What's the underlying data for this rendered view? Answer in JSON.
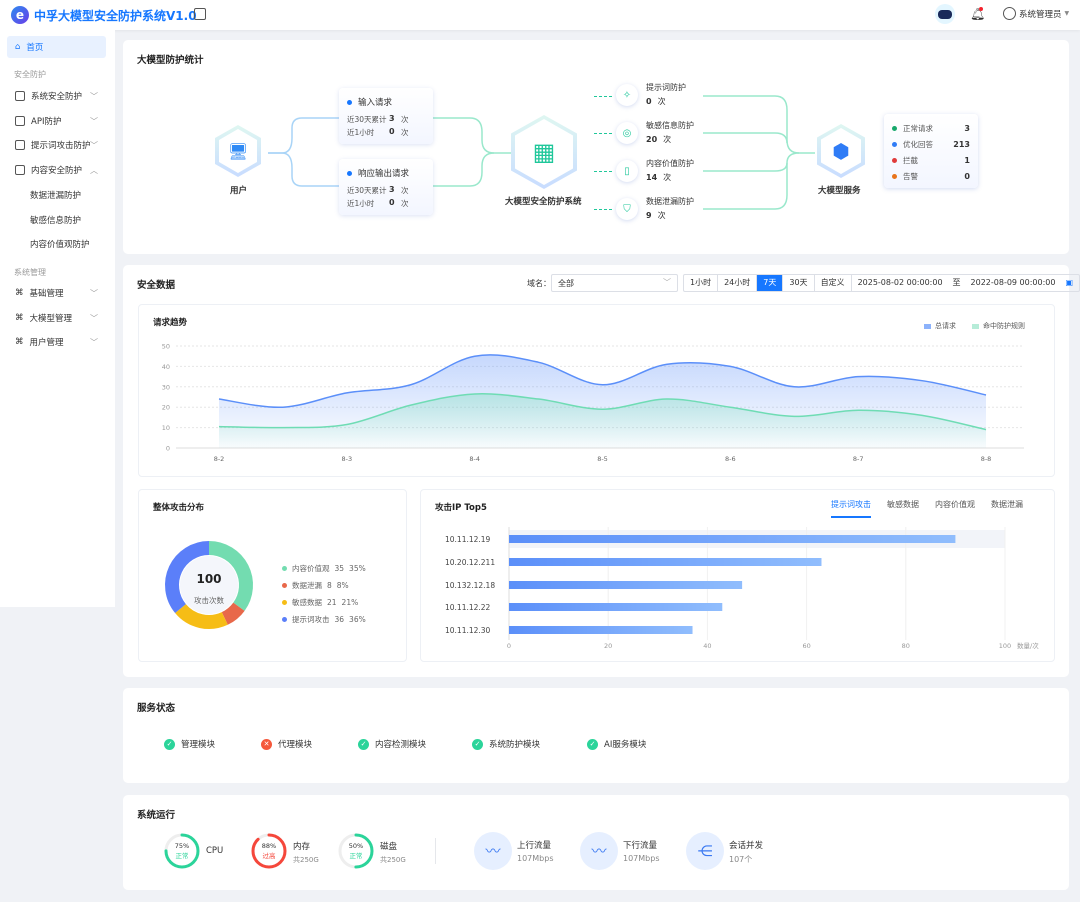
{
  "header": {
    "title": "中孚大模型安全防护系统V1.0",
    "logo_letter": "e",
    "user": "系统管理员",
    "icons": [
      "collapse-icon",
      "robot-icon",
      "bell-icon",
      "user-avatar-icon"
    ]
  },
  "sidebar": {
    "home": "首页",
    "group1": "安全防护",
    "items1": [
      {
        "label": "系统安全防护"
      },
      {
        "label": "API防护"
      },
      {
        "label": "提示词攻击防护"
      },
      {
        "label": "内容安全防护"
      }
    ],
    "subitems": [
      {
        "label": "数据泄漏防护"
      },
      {
        "label": "敏感信息防护"
      },
      {
        "label": "内容价值观防护"
      }
    ],
    "group2": "系统管理",
    "items2": [
      {
        "label": "基础管理"
      },
      {
        "label": "大模型管理"
      },
      {
        "label": "用户管理"
      }
    ]
  },
  "stats": {
    "title": "大模型防护统计",
    "user": "用户",
    "system": "大模型安全防护系统",
    "service": "大模型服务",
    "unit": "次",
    "input": {
      "title": "输入请求",
      "r1": "近30天累计",
      "v1": "3",
      "r2": "近1小时",
      "v2": "0"
    },
    "output": {
      "title": "响应输出请求",
      "r1": "近30天累计",
      "v1": "3",
      "r2": "近1小时",
      "v2": "0"
    },
    "protections": [
      {
        "label": "提示词防护",
        "count": "0",
        "icon": "magic-wand-icon"
      },
      {
        "label": "敏感信息防护",
        "count": "20",
        "icon": "eye-off-icon"
      },
      {
        "label": "内容价值防护",
        "count": "14",
        "icon": "book-icon"
      },
      {
        "label": "数据泄漏防护",
        "count": "9",
        "icon": "shield-icon"
      }
    ],
    "results": [
      {
        "label": "正常请求",
        "value": "3",
        "color": "#17a86b"
      },
      {
        "label": "优化回答",
        "value": "213",
        "color": "#2f7cf6"
      },
      {
        "label": "拦截",
        "value": "1",
        "color": "#e03b3b"
      },
      {
        "label": "告警",
        "value": "0",
        "color": "#e8741c"
      }
    ]
  },
  "security": {
    "title": "安全数据",
    "domain_label": "域名：",
    "domain_value": "全部",
    "ranges": [
      "1小时",
      "24小时",
      "7天",
      "30天",
      "自定义"
    ],
    "active_range": "7天",
    "start": "2025-08-02 00:00:00",
    "to": "至",
    "end": "2022-08-09 00:00:00"
  },
  "chart_data": [
    {
      "type": "area",
      "title": "请求趋势",
      "categories": [
        "8-2",
        "",
        "8-3",
        "",
        "8-4",
        "",
        "8-5",
        "",
        "8-6",
        "",
        "8-7",
        "",
        "8-8"
      ],
      "ylim": [
        0,
        50
      ],
      "yticks": [
        "0",
        "10",
        "20",
        "30",
        "40",
        "50"
      ],
      "grid": true,
      "legend_position": "top-right",
      "series": [
        {
          "name": "总请求",
          "color": "#5b8ff9",
          "values": [
            24,
            20,
            27,
            31,
            45,
            42,
            31,
            41,
            40,
            30,
            35,
            33,
            26
          ]
        },
        {
          "name": "命中防护规则",
          "color": "#6fdcb4",
          "values": [
            10.5,
            10,
            11.5,
            21,
            26.5,
            24,
            19,
            24,
            20,
            15.5,
            18.5,
            16,
            9
          ]
        }
      ]
    },
    {
      "type": "pie",
      "title": "整体攻击分布",
      "center_value": "100",
      "center_label": "攻击次数",
      "slices": [
        {
          "label": "内容价值观",
          "value": 35,
          "percent": "35%",
          "color": "#73dcb0"
        },
        {
          "label": "数据泄漏",
          "value": 8,
          "percent": "8%",
          "color": "#e8684a"
        },
        {
          "label": "敏感数据",
          "value": 21,
          "percent": "21%",
          "color": "#f6bd16"
        },
        {
          "label": "提示词攻击",
          "value": 36,
          "percent": "36%",
          "color": "#5b7ff9"
        }
      ]
    },
    {
      "type": "bar",
      "title": "攻击IP Top5",
      "tabs": [
        "提示词攻击",
        "敏感数据",
        "内容价值观",
        "数据泄漏"
      ],
      "active_tab": "提示词攻击",
      "categories": [
        "10.11.12.19",
        "10.20.12.211",
        "10.132.12.18",
        "10.11.12.22",
        "10.11.12.30"
      ],
      "values": [
        90,
        63,
        47,
        43,
        37
      ],
      "xlim": [
        0,
        100
      ],
      "xticks": [
        "0",
        "20",
        "40",
        "60",
        "80",
        "100"
      ],
      "xlabel": "数量/次"
    }
  ],
  "services": {
    "title": "服务状态",
    "items": [
      {
        "label": "管理模块",
        "status": "ok"
      },
      {
        "label": "代理模块",
        "status": "error"
      },
      {
        "label": "内容检测模块",
        "status": "ok"
      },
      {
        "label": "系统防护模块",
        "status": "ok"
      },
      {
        "label": "AI服务模块",
        "status": "ok"
      }
    ]
  },
  "runtime": {
    "title": "系统运行",
    "gauges": [
      {
        "label": "CPU",
        "percent": 75,
        "pct_text": "75%",
        "status": "正常",
        "sub": "",
        "color": "#2bd49a"
      },
      {
        "label": "内存",
        "percent": 88,
        "pct_text": "88%",
        "status": "过高",
        "sub": "共250G",
        "color": "#f5473b"
      },
      {
        "label": "磁盘",
        "percent": 50,
        "pct_text": "50%",
        "status": "正常",
        "sub": "共250G",
        "color": "#2bd49a"
      }
    ],
    "traffic": [
      {
        "label": "上行流量",
        "value": "107Mbps",
        "icon": "upload-traffic-icon"
      },
      {
        "label": "下行流量",
        "value": "107Mbps",
        "icon": "download-traffic-icon"
      },
      {
        "label": "会话并发",
        "value": "107个",
        "icon": "branch-icon"
      }
    ]
  }
}
